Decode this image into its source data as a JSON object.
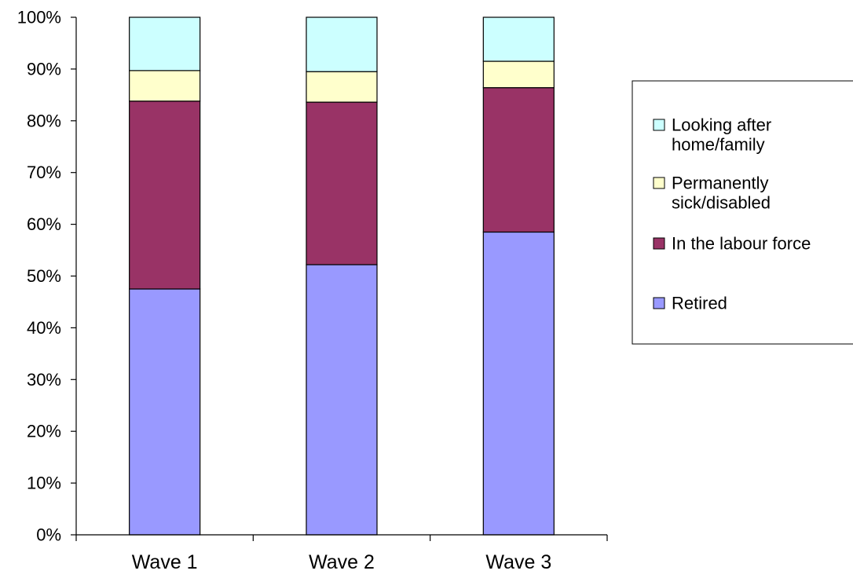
{
  "chart_data": {
    "type": "bar",
    "stacked": true,
    "percent_stacked": true,
    "categories": [
      "Wave 1",
      "Wave 2",
      "Wave 3"
    ],
    "series": [
      {
        "name": "Retired",
        "values": [
          47.5,
          52.2,
          58.5
        ],
        "color": "#9999FF"
      },
      {
        "name": "In the labour force",
        "values": [
          36.3,
          31.4,
          27.9
        ],
        "color": "#993366"
      },
      {
        "name": "Permanently sick/disabled",
        "values": [
          5.9,
          5.9,
          5.1
        ],
        "color": "#FFFFCC"
      },
      {
        "name": "Looking after home/family",
        "values": [
          10.3,
          10.5,
          8.5
        ],
        "color": "#CCFFFF"
      }
    ],
    "legend": {
      "placement": "right",
      "order": [
        "Looking after home/family",
        "Permanently sick/disabled",
        "In the labour force",
        "Retired"
      ],
      "labels": [
        [
          "Looking after",
          "home/family"
        ],
        [
          "Permanently",
          "sick/disabled"
        ],
        [
          "In the labour force"
        ],
        [
          "Retired"
        ]
      ]
    },
    "ylim": [
      0,
      100
    ],
    "yticks": [
      "0%",
      "10%",
      "20%",
      "30%",
      "40%",
      "50%",
      "60%",
      "70%",
      "80%",
      "90%",
      "100%"
    ],
    "grid": false,
    "title": "",
    "xlabel": "",
    "ylabel": ""
  }
}
